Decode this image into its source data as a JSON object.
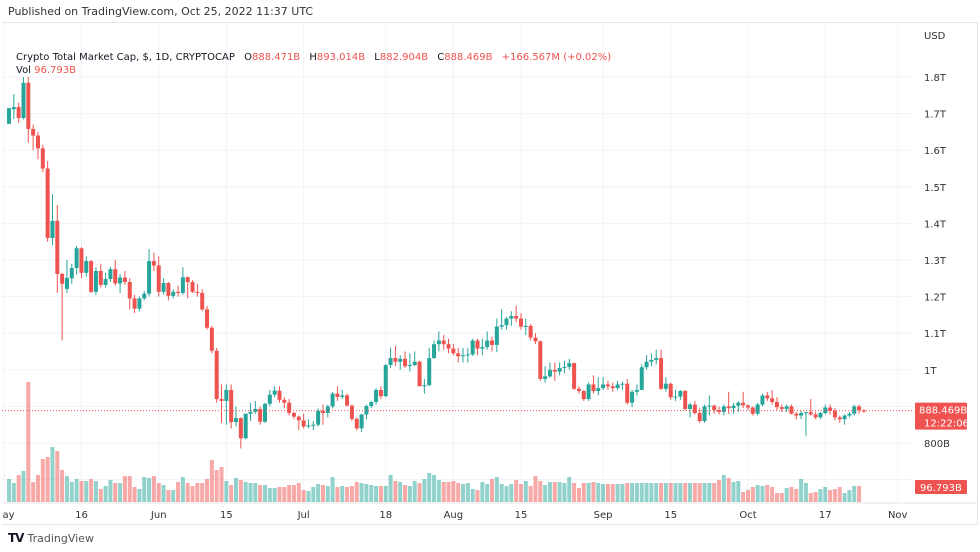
{
  "published": "Published on TradingView.com, Oct 25, 2022 11:37 UTC",
  "legend": {
    "title": "Crypto Total Market Cap, $, 1D, CRYPTOCAP",
    "o_label": "O",
    "o": "888.471B",
    "h_label": "H",
    "h": "893.014B",
    "l_label": "L",
    "l": "882.904B",
    "c_label": "C",
    "c": "888.469B",
    "change": "+166.567M (+0.02%)",
    "vol_label": "Vol",
    "vol": "96.793B"
  },
  "footer": {
    "logo_text": "TradingView"
  },
  "colors": {
    "up": "#26a69a",
    "down": "#ef5350",
    "grid": "#f0f3fa"
  },
  "chart_data": {
    "type": "candlestick",
    "title": "Crypto Total Market Cap, $, 1D, CRYPTOCAP",
    "currency_label": "USD",
    "y_unit": "B USD",
    "ylim": [
      700,
      1900
    ],
    "grid": true,
    "y_ticks": [
      {
        "value": 1800,
        "label": "1.8T"
      },
      {
        "value": 1700,
        "label": "1.7T"
      },
      {
        "value": 1600,
        "label": "1.6T"
      },
      {
        "value": 1500,
        "label": "1.5T"
      },
      {
        "value": 1400,
        "label": "1.4T"
      },
      {
        "value": 1300,
        "label": "1.3T"
      },
      {
        "value": 1200,
        "label": "1.2T"
      },
      {
        "value": 1100,
        "label": "1.1T"
      },
      {
        "value": 1000,
        "label": "1T"
      },
      {
        "value": 800,
        "label": "800B"
      }
    ],
    "x_ticks": [
      {
        "index": -1,
        "label": "May"
      },
      {
        "index": 15,
        "label": "16"
      },
      {
        "index": 31,
        "label": "Jun"
      },
      {
        "index": 45,
        "label": "15"
      },
      {
        "index": 61,
        "label": "Jul"
      },
      {
        "index": 78,
        "label": "18"
      },
      {
        "index": 92,
        "label": "Aug"
      },
      {
        "index": 106,
        "label": "15"
      },
      {
        "index": 123,
        "label": "Sep"
      },
      {
        "index": 137,
        "label": "15"
      },
      {
        "index": 153,
        "label": "Oct"
      },
      {
        "index": 169,
        "label": "17"
      },
      {
        "index": 184,
        "label": "Nov"
      }
    ],
    "last_price_label": "888.469B",
    "countdown": "12:22:06",
    "last_volume_label": "96.793B",
    "candles_ohlc": [
      [
        1672,
        1715,
        1672,
        1715
      ],
      [
        1712,
        1753,
        1685,
        1718
      ],
      [
        1718,
        1730,
        1675,
        1688
      ],
      [
        1688,
        1800,
        1684,
        1784
      ],
      [
        1784,
        1800,
        1620,
        1658
      ],
      [
        1658,
        1670,
        1600,
        1640
      ],
      [
        1640,
        1650,
        1575,
        1605
      ],
      [
        1605,
        1615,
        1540,
        1550
      ],
      [
        1550,
        1570,
        1350,
        1360
      ],
      [
        1360,
        1480,
        1340,
        1407
      ],
      [
        1407,
        1450,
        1210,
        1262
      ],
      [
        1262,
        1265,
        1080,
        1235
      ],
      [
        1221,
        1300,
        1210,
        1251
      ],
      [
        1250,
        1290,
        1235,
        1278
      ],
      [
        1278,
        1338,
        1260,
        1332
      ],
      [
        1332,
        1335,
        1250,
        1265
      ],
      [
        1265,
        1310,
        1255,
        1297
      ],
      [
        1297,
        1300,
        1210,
        1213
      ],
      [
        1213,
        1280,
        1205,
        1270
      ],
      [
        1270,
        1290,
        1225,
        1232
      ],
      [
        1232,
        1265,
        1225,
        1248
      ],
      [
        1248,
        1282,
        1240,
        1275
      ],
      [
        1275,
        1300,
        1230,
        1236
      ],
      [
        1236,
        1262,
        1210,
        1252
      ],
      [
        1252,
        1270,
        1232,
        1240
      ],
      [
        1240,
        1250,
        1165,
        1195
      ],
      [
        1195,
        1205,
        1155,
        1167
      ],
      [
        1167,
        1200,
        1160,
        1195
      ],
      [
        1195,
        1215,
        1190,
        1208
      ],
      [
        1208,
        1330,
        1200,
        1297
      ],
      [
        1297,
        1320,
        1270,
        1285
      ],
      [
        1285,
        1310,
        1200,
        1213
      ],
      [
        1213,
        1250,
        1205,
        1237
      ],
      [
        1237,
        1240,
        1190,
        1202
      ],
      [
        1202,
        1220,
        1195,
        1213
      ],
      [
        1213,
        1230,
        1200,
        1210
      ],
      [
        1210,
        1280,
        1205,
        1253
      ],
      [
        1253,
        1255,
        1195,
        1240
      ],
      [
        1240,
        1245,
        1210,
        1213
      ],
      [
        1213,
        1235,
        1200,
        1210
      ],
      [
        1210,
        1220,
        1160,
        1165
      ],
      [
        1165,
        1175,
        1110,
        1115
      ],
      [
        1115,
        1120,
        1045,
        1052
      ],
      [
        1052,
        1060,
        910,
        920
      ],
      [
        920,
        960,
        855,
        915
      ],
      [
        915,
        960,
        850,
        945
      ],
      [
        945,
        960,
        840,
        857
      ],
      [
        857,
        900,
        845,
        868
      ],
      [
        868,
        870,
        785,
        813
      ],
      [
        813,
        880,
        810,
        880
      ],
      [
        880,
        910,
        860,
        885
      ],
      [
        885,
        915,
        880,
        893
      ],
      [
        893,
        900,
        850,
        858
      ],
      [
        858,
        910,
        855,
        907
      ],
      [
        907,
        945,
        900,
        932
      ],
      [
        932,
        955,
        925,
        943
      ],
      [
        943,
        955,
        910,
        918
      ],
      [
        918,
        925,
        895,
        910
      ],
      [
        910,
        920,
        875,
        882
      ],
      [
        882,
        885,
        865,
        872
      ],
      [
        872,
        875,
        835,
        862
      ],
      [
        862,
        880,
        840,
        845
      ],
      [
        845,
        865,
        840,
        848
      ],
      [
        848,
        860,
        835,
        850
      ],
      [
        850,
        895,
        845,
        888
      ],
      [
        888,
        905,
        850,
        882
      ],
      [
        882,
        905,
        870,
        900
      ],
      [
        900,
        940,
        895,
        935
      ],
      [
        935,
        955,
        915,
        926
      ],
      [
        926,
        945,
        920,
        930
      ],
      [
        930,
        935,
        900,
        902
      ],
      [
        902,
        905,
        860,
        866
      ],
      [
        866,
        870,
        835,
        840
      ],
      [
        840,
        880,
        830,
        878
      ],
      [
        878,
        905,
        865,
        901
      ],
      [
        901,
        915,
        895,
        912
      ],
      [
        912,
        950,
        905,
        945
      ],
      [
        945,
        955,
        920,
        928
      ],
      [
        928,
        1015,
        925,
        1013
      ],
      [
        1013,
        1060,
        1005,
        1032
      ],
      [
        1032,
        1065,
        1010,
        1022
      ],
      [
        1022,
        1040,
        1000,
        1030
      ],
      [
        1030,
        1050,
        1005,
        1010
      ],
      [
        1010,
        1045,
        995,
        1013
      ],
      [
        1013,
        1050,
        1010,
        1022
      ],
      [
        1022,
        1025,
        955,
        955
      ],
      [
        955,
        975,
        935,
        958
      ],
      [
        958,
        1060,
        955,
        1032
      ],
      [
        1032,
        1080,
        1030,
        1070
      ],
      [
        1070,
        1105,
        1050,
        1080
      ],
      [
        1080,
        1095,
        1055,
        1070
      ],
      [
        1070,
        1085,
        1045,
        1058
      ],
      [
        1058,
        1070,
        1040,
        1045
      ],
      [
        1045,
        1060,
        1020,
        1037
      ],
      [
        1037,
        1060,
        1020,
        1040
      ],
      [
        1040,
        1060,
        1020,
        1042
      ],
      [
        1042,
        1085,
        1038,
        1080
      ],
      [
        1080,
        1085,
        1040,
        1058
      ],
      [
        1058,
        1085,
        1040,
        1062
      ],
      [
        1062,
        1105,
        1055,
        1080
      ],
      [
        1080,
        1090,
        1050,
        1068
      ],
      [
        1068,
        1140,
        1048,
        1118
      ],
      [
        1118,
        1165,
        1110,
        1122
      ],
      [
        1122,
        1145,
        1110,
        1140
      ],
      [
        1140,
        1160,
        1120,
        1147
      ],
      [
        1147,
        1175,
        1130,
        1140
      ],
      [
        1140,
        1155,
        1110,
        1118
      ],
      [
        1118,
        1140,
        1095,
        1120
      ],
      [
        1120,
        1125,
        1080,
        1088
      ],
      [
        1088,
        1100,
        1070,
        1078
      ],
      [
        1078,
        1080,
        970,
        975
      ],
      [
        975,
        1010,
        965,
        982
      ],
      [
        982,
        1020,
        978,
        1000
      ],
      [
        1000,
        1020,
        970,
        995
      ],
      [
        995,
        1020,
        985,
        1005
      ],
      [
        1005,
        1025,
        990,
        1008
      ],
      [
        1008,
        1030,
        1000,
        1018
      ],
      [
        1018,
        1020,
        945,
        948
      ],
      [
        948,
        955,
        935,
        942
      ],
      [
        942,
        945,
        915,
        920
      ],
      [
        920,
        965,
        915,
        960
      ],
      [
        960,
        985,
        935,
        942
      ],
      [
        942,
        980,
        930,
        950
      ],
      [
        950,
        980,
        945,
        960
      ],
      [
        960,
        970,
        945,
        955
      ],
      [
        955,
        965,
        940,
        950
      ],
      [
        950,
        970,
        945,
        960
      ],
      [
        960,
        968,
        945,
        962
      ],
      [
        962,
        975,
        905,
        910
      ],
      [
        910,
        945,
        898,
        940
      ],
      [
        940,
        960,
        930,
        945
      ],
      [
        945,
        1015,
        945,
        1007
      ],
      [
        1007,
        1040,
        1000,
        1022
      ],
      [
        1022,
        1045,
        1010,
        1027
      ],
      [
        1027,
        1055,
        1015,
        1032
      ],
      [
        1032,
        1055,
        945,
        948
      ],
      [
        948,
        980,
        940,
        962
      ],
      [
        962,
        965,
        918,
        925
      ],
      [
        925,
        945,
        915,
        927
      ],
      [
        927,
        945,
        918,
        942
      ],
      [
        942,
        945,
        890,
        893
      ],
      [
        893,
        910,
        870,
        905
      ],
      [
        905,
        915,
        878,
        882
      ],
      [
        882,
        895,
        855,
        860
      ],
      [
        860,
        905,
        855,
        900
      ],
      [
        900,
        930,
        875,
        902
      ],
      [
        902,
        905,
        880,
        890
      ],
      [
        890,
        900,
        878,
        885
      ],
      [
        885,
        905,
        875,
        900
      ],
      [
        900,
        940,
        880,
        895
      ],
      [
        895,
        910,
        880,
        902
      ],
      [
        902,
        915,
        885,
        910
      ],
      [
        910,
        940,
        895,
        903
      ],
      [
        903,
        905,
        890,
        897
      ],
      [
        897,
        900,
        875,
        880
      ],
      [
        880,
        910,
        875,
        905
      ],
      [
        905,
        935,
        900,
        930
      ],
      [
        930,
        940,
        915,
        922
      ],
      [
        922,
        945,
        905,
        912
      ],
      [
        912,
        925,
        890,
        898
      ],
      [
        898,
        905,
        885,
        893
      ],
      [
        893,
        905,
        885,
        900
      ],
      [
        900,
        905,
        878,
        880
      ],
      [
        880,
        885,
        865,
        875
      ],
      [
        875,
        888,
        865,
        882
      ],
      [
        882,
        885,
        820,
        884
      ],
      [
        884,
        920,
        875,
        878
      ],
      [
        878,
        885,
        865,
        870
      ],
      [
        870,
        885,
        865,
        882
      ],
      [
        882,
        905,
        878,
        897
      ],
      [
        897,
        905,
        878,
        888
      ],
      [
        888,
        895,
        862,
        870
      ],
      [
        870,
        875,
        855,
        865
      ],
      [
        865,
        878,
        850,
        875
      ],
      [
        875,
        885,
        870,
        880
      ],
      [
        880,
        905,
        875,
        900
      ],
      [
        900,
        905,
        880,
        890
      ],
      [
        888.471,
        893.014,
        882.904,
        888.469
      ]
    ],
    "volumes": [
      138,
      114,
      162,
      186,
      720,
      120,
      162,
      258,
      270,
      330,
      306,
      192,
      156,
      120,
      138,
      126,
      126,
      138,
      126,
      78,
      96,
      132,
      114,
      114,
      156,
      156,
      90,
      78,
      150,
      144,
      156,
      114,
      102,
      72,
      72,
      120,
      150,
      114,
      96,
      114,
      114,
      138,
      252,
      192,
      210,
      126,
      102,
      144,
      132,
      120,
      114,
      114,
      102,
      102,
      84,
      84,
      90,
      90,
      102,
      102,
      114,
      72,
      66,
      90,
      108,
      102,
      96,
      150,
      90,
      96,
      90,
      96,
      120,
      114,
      108,
      102,
      96,
      96,
      96,
      162,
      126,
      120,
      102,
      96,
      126,
      114,
      138,
      174,
      162,
      132,
      120,
      120,
      126,
      114,
      108,
      114,
      78,
      72,
      120,
      108,
      138,
      150,
      108,
      96,
      108,
      132,
      108,
      126,
      96,
      156,
      126,
      102,
      120,
      120,
      120,
      114,
      150,
      114,
      84,
      114,
      114,
      120,
      114,
      108,
      108,
      108,
      108,
      108,
      114,
      114,
      114,
      114,
      114,
      114,
      114,
      114,
      114,
      114,
      114,
      114,
      114,
      114,
      114,
      114,
      114,
      114,
      114,
      132,
      162,
      144,
      120,
      126,
      60,
      72,
      90,
      102,
      96,
      102,
      90,
      54,
      54,
      84,
      90,
      78,
      138,
      114,
      54,
      60,
      78,
      90,
      72,
      78,
      90,
      54,
      72,
      96,
      96.793
    ]
  }
}
